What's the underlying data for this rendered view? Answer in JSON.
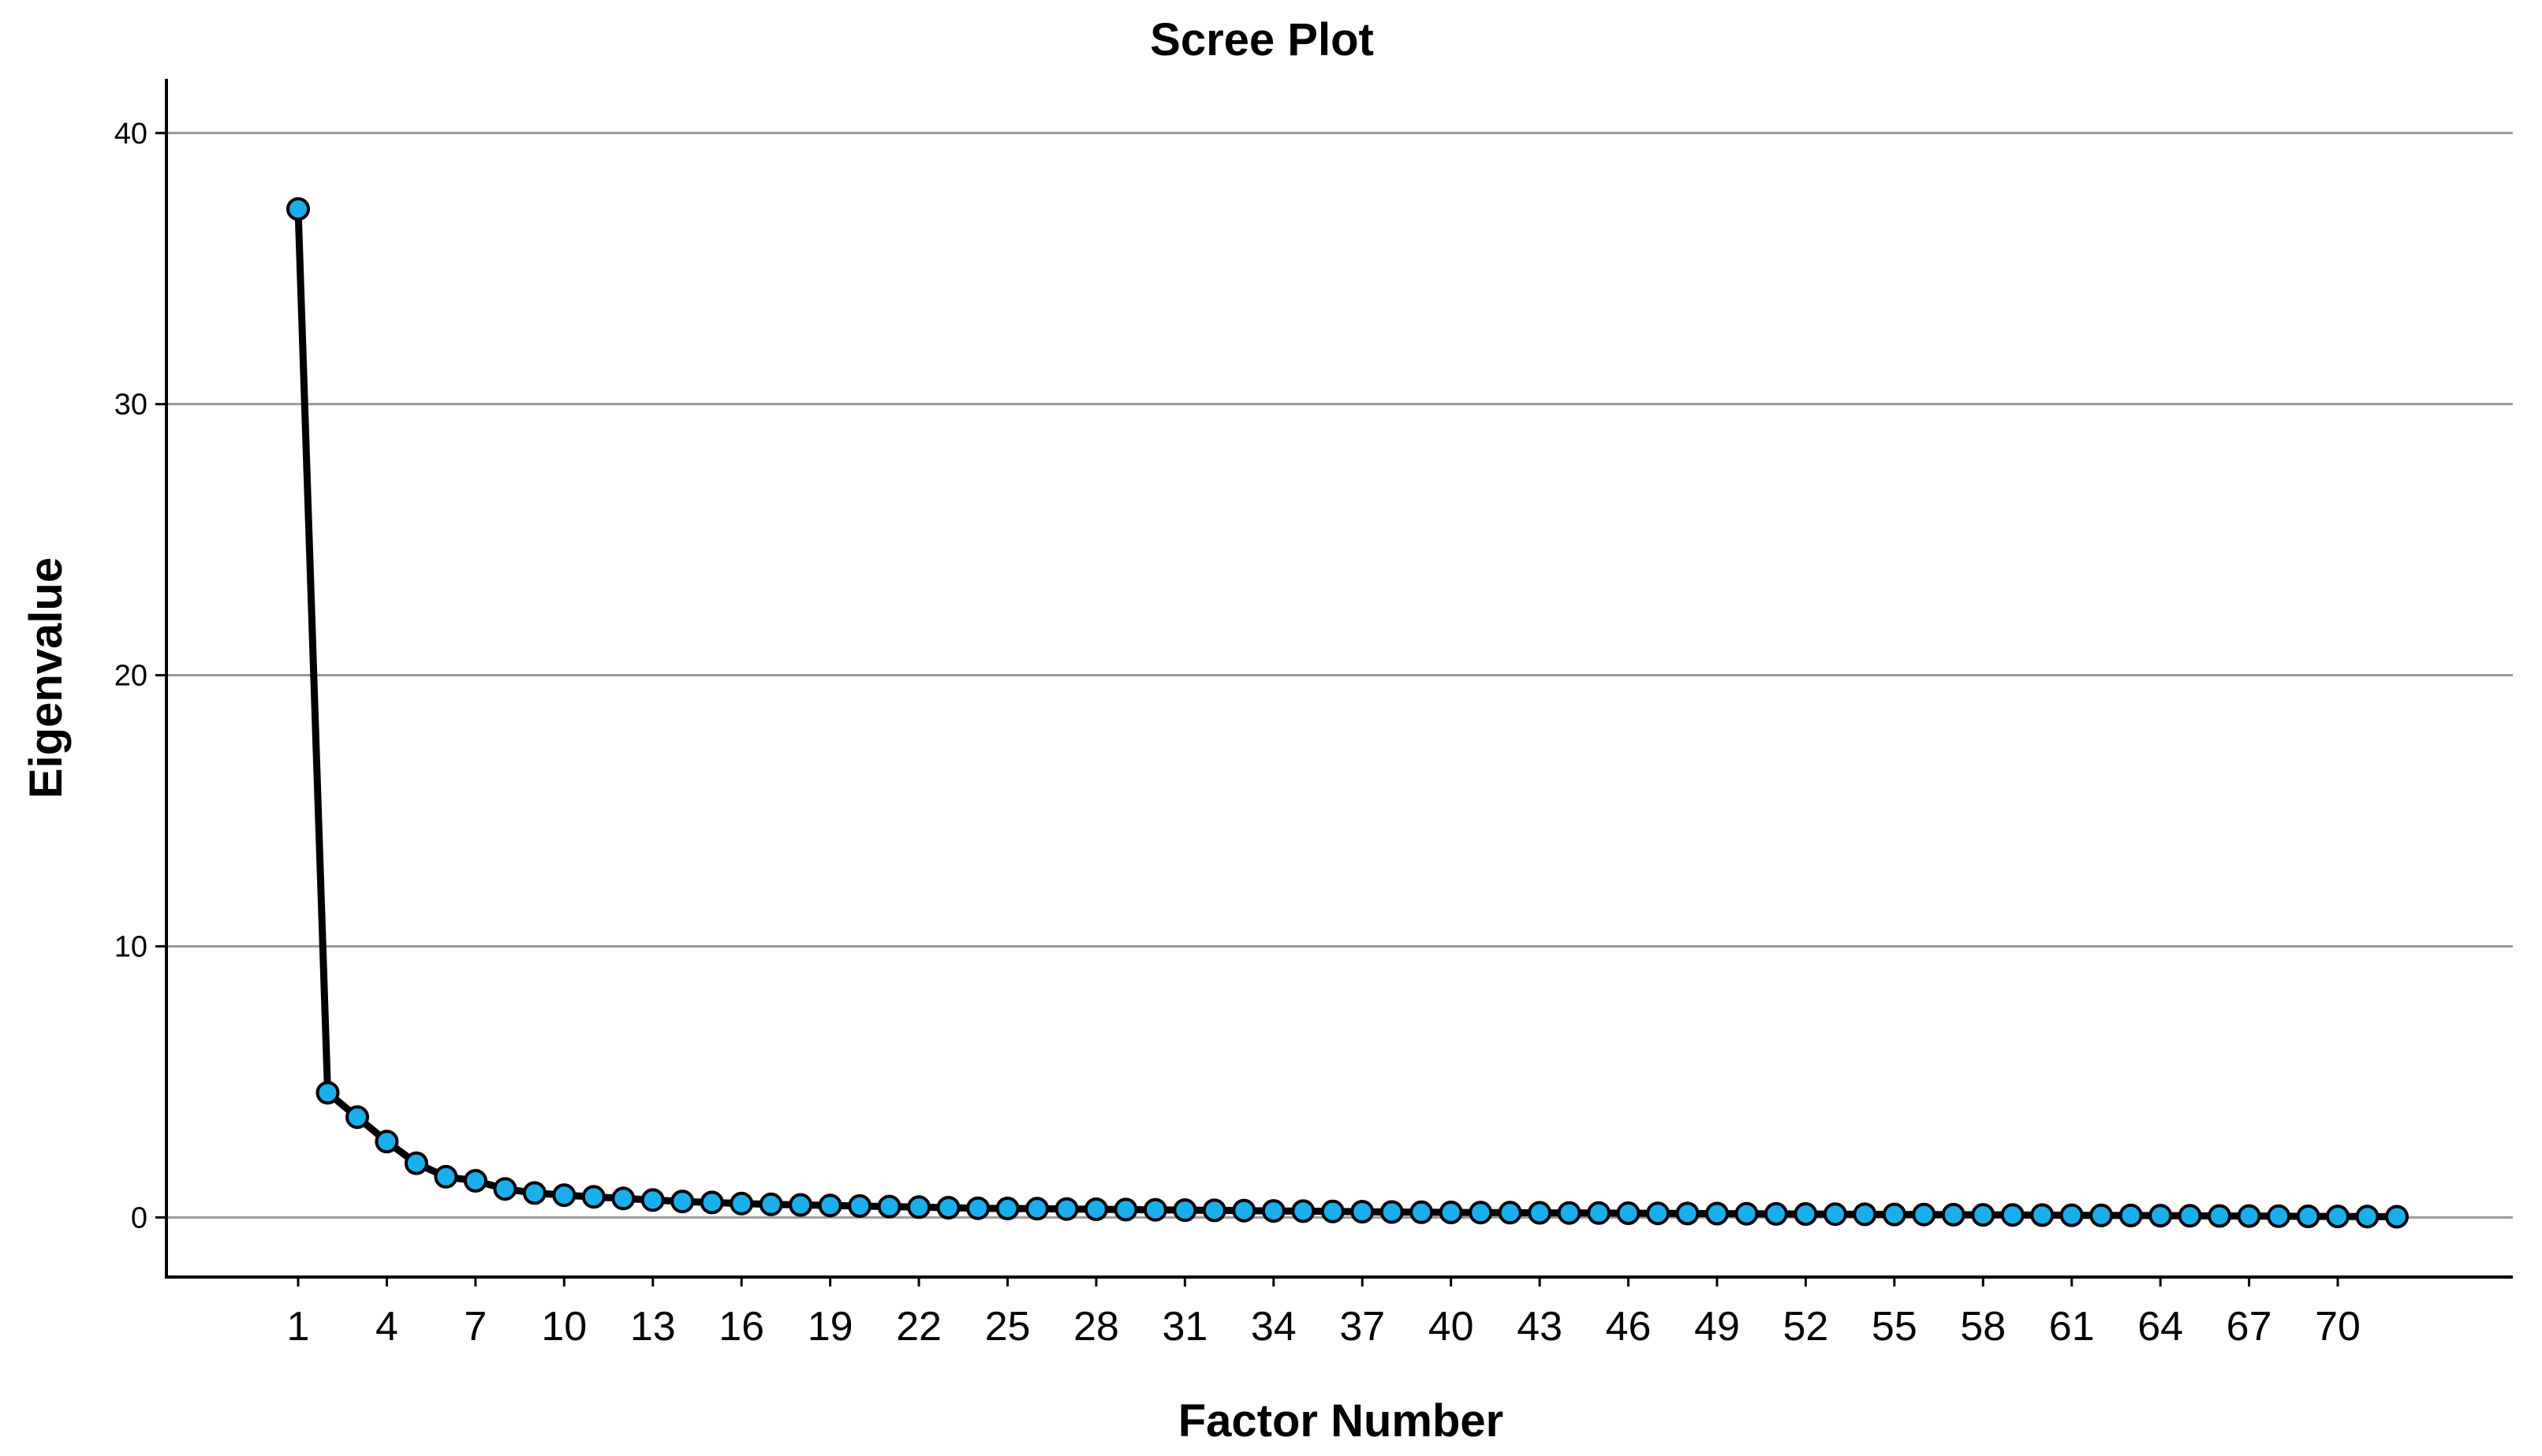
{
  "chart_data": {
    "type": "line",
    "title": "Scree Plot",
    "xlabel": "Factor Number",
    "ylabel": "Eigenvalue",
    "xlim": [
      1,
      72
    ],
    "ylim": [
      -2.2,
      42
    ],
    "yticks": [
      0,
      10,
      20,
      30,
      40
    ],
    "xtick_labels": [
      "1",
      "4",
      "7",
      "10",
      "13",
      "16",
      "19",
      "22",
      "25",
      "28",
      "31",
      "34",
      "37",
      "40",
      "43",
      "46",
      "49",
      "52",
      "55",
      "58",
      "61",
      "64",
      "67",
      "70"
    ],
    "grid": "horizontal",
    "legend": "none",
    "colors": {
      "marker_fill": "#1aaeed",
      "marker_edge": "#000000",
      "line": "#000000",
      "grid": "#9a9a9a"
    },
    "x": [
      1,
      2,
      3,
      4,
      5,
      6,
      7,
      8,
      9,
      10,
      11,
      12,
      13,
      14,
      15,
      16,
      17,
      18,
      19,
      20,
      21,
      22,
      23,
      24,
      25,
      26,
      27,
      28,
      29,
      30,
      31,
      32,
      33,
      34,
      35,
      36,
      37,
      38,
      39,
      40,
      41,
      42,
      43,
      44,
      45,
      46,
      47,
      48,
      49,
      50,
      51,
      52,
      53,
      54,
      55,
      56,
      57,
      58,
      59,
      60,
      61,
      62,
      63,
      64,
      65,
      66,
      67,
      68,
      69,
      70,
      71,
      72
    ],
    "values": [
      37.2,
      4.6,
      3.7,
      2.8,
      2.0,
      1.5,
      1.35,
      1.05,
      0.9,
      0.82,
      0.76,
      0.7,
      0.64,
      0.59,
      0.55,
      0.51,
      0.48,
      0.46,
      0.44,
      0.42,
      0.4,
      0.38,
      0.36,
      0.34,
      0.33,
      0.32,
      0.31,
      0.3,
      0.29,
      0.28,
      0.27,
      0.26,
      0.25,
      0.24,
      0.23,
      0.22,
      0.21,
      0.2,
      0.19,
      0.185,
      0.18,
      0.175,
      0.17,
      0.165,
      0.16,
      0.155,
      0.15,
      0.145,
      0.14,
      0.135,
      0.13,
      0.125,
      0.12,
      0.115,
      0.11,
      0.105,
      0.1,
      0.095,
      0.09,
      0.085,
      0.08,
      0.075,
      0.07,
      0.065,
      0.06,
      0.055,
      0.05,
      0.045,
      0.04,
      0.035,
      0.03,
      0.025
    ]
  }
}
